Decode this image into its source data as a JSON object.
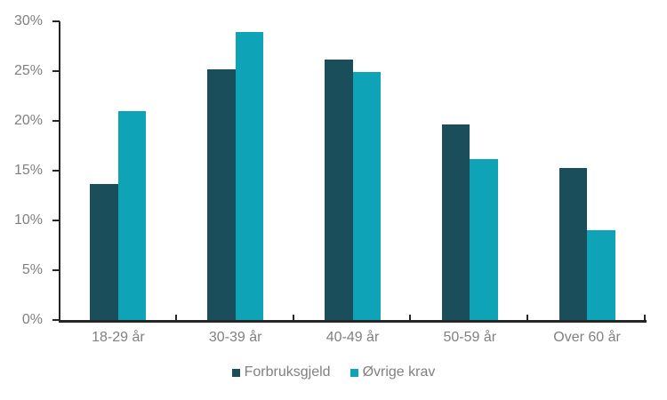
{
  "chart": {
    "axis_color": "#262626",
    "label_color": "#808080",
    "background": "#ffffff"
  },
  "chart_data": {
    "type": "bar",
    "categories": [
      "18-29 år",
      "30-39 år",
      "40-49 år",
      "50-59 år",
      "Over 60 år"
    ],
    "series": [
      {
        "name": "Forbruksgjeld",
        "color": "#1B4E5B",
        "values": [
          13.7,
          25.2,
          26.2,
          19.6,
          15.3
        ]
      },
      {
        "name": "Øvrige krav",
        "color": "#0FA3B8",
        "values": [
          21.0,
          28.9,
          24.9,
          16.2,
          9.0
        ]
      }
    ],
    "title": "",
    "xlabel": "",
    "ylabel": "",
    "ylim": [
      0,
      30
    ],
    "ytick_step": 5,
    "ytick_labels": [
      "0%",
      "5%",
      "10%",
      "15%",
      "20%",
      "25%",
      "30%"
    ],
    "grid": false,
    "legend_position": "bottom"
  }
}
